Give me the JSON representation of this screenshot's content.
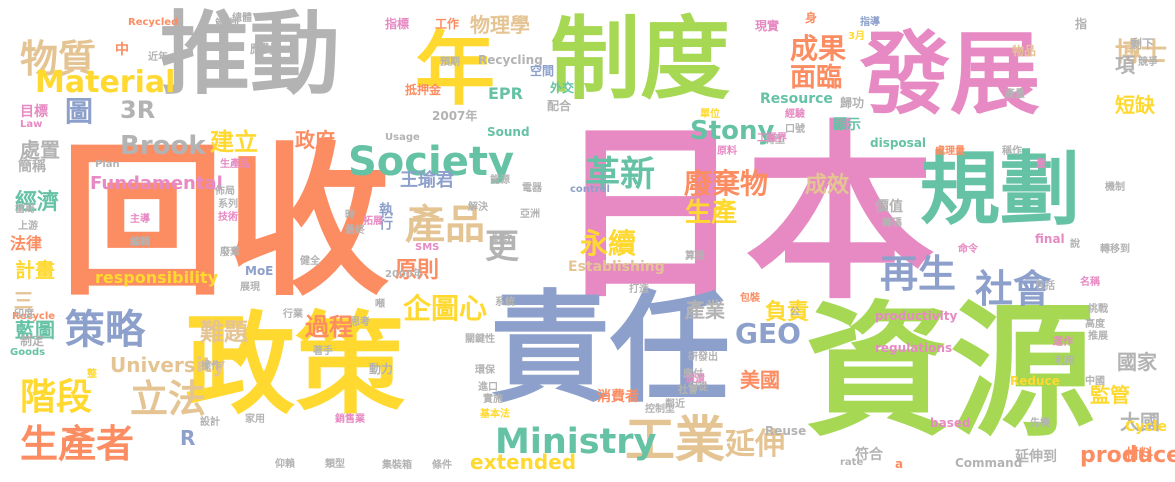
{
  "palette": {
    "green": "#a6d854",
    "pink": "#e78ac3",
    "orange": "#fc8d62",
    "blue": "#8da0cb",
    "teal": "#66c2a5",
    "yellow": "#ffd92f",
    "tan": "#e5c494",
    "gray": "#b3b3b3"
  },
  "words": [
    {
      "text": "日本",
      "color": "pink"
    },
    {
      "text": "回收",
      "color": "orange"
    },
    {
      "text": "資源",
      "color": "green"
    },
    {
      "text": "推動",
      "color": "gray"
    },
    {
      "text": "發展",
      "color": "pink"
    },
    {
      "text": "責任",
      "color": "blue"
    },
    {
      "text": "政策",
      "color": "yellow"
    },
    {
      "text": "制度",
      "color": "green"
    },
    {
      "text": "規劃",
      "color": "teal"
    },
    {
      "text": "年",
      "color": "yellow"
    },
    {
      "text": "Society",
      "color": "teal"
    },
    {
      "text": "產品",
      "color": "tan"
    },
    {
      "text": "革新",
      "color": "teal"
    },
    {
      "text": "工業",
      "color": "tan"
    },
    {
      "text": "延伸",
      "color": "tan"
    },
    {
      "text": "再生",
      "color": "blue"
    },
    {
      "text": "社會",
      "color": "blue"
    },
    {
      "text": "Ministry",
      "color": "teal"
    },
    {
      "text": "物質",
      "color": "tan"
    },
    {
      "text": "策略",
      "color": "blue"
    },
    {
      "text": "生產者",
      "color": "orange"
    },
    {
      "text": "立法",
      "color": "tan"
    },
    {
      "text": "階段",
      "color": "yellow"
    },
    {
      "text": "Material",
      "color": "yellow"
    },
    {
      "text": "圖",
      "color": "blue"
    },
    {
      "text": "3R",
      "color": "gray"
    },
    {
      "text": "成果",
      "color": "orange"
    },
    {
      "text": "面臨",
      "color": "orange"
    },
    {
      "text": "博士",
      "color": "tan"
    },
    {
      "text": "項",
      "color": "gray"
    },
    {
      "text": "短缺",
      "color": "yellow"
    },
    {
      "text": "物理學",
      "color": "tan"
    },
    {
      "text": "Stony",
      "color": "teal"
    },
    {
      "text": "Brook",
      "color": "gray"
    },
    {
      "text": "建立",
      "color": "yellow"
    },
    {
      "text": "政府",
      "color": "orange"
    },
    {
      "text": "廢棄物",
      "color": "orange"
    },
    {
      "text": "生產",
      "color": "yellow"
    },
    {
      "text": "成效",
      "color": "tan"
    },
    {
      "text": "永續",
      "color": "yellow"
    },
    {
      "text": "更",
      "color": "gray"
    },
    {
      "text": "原則",
      "color": "orange"
    },
    {
      "text": "GEO",
      "color": "blue"
    },
    {
      "text": "負責",
      "color": "yellow"
    },
    {
      "text": "產業",
      "color": "gray"
    },
    {
      "text": "企圖心",
      "color": "yellow"
    },
    {
      "text": "難題",
      "color": "tan"
    },
    {
      "text": "過程",
      "color": "orange"
    },
    {
      "text": "University",
      "color": "tan"
    },
    {
      "text": "美國",
      "color": "orange"
    },
    {
      "text": "R",
      "color": "blue"
    },
    {
      "text": "producer",
      "color": "orange"
    },
    {
      "text": "extended",
      "color": "yellow"
    },
    {
      "text": "Fundamental",
      "color": "pink"
    },
    {
      "text": "responsibility",
      "color": "yellow"
    },
    {
      "text": "Establishing",
      "color": "tan"
    },
    {
      "text": "王瑜君",
      "color": "blue"
    },
    {
      "text": "執行",
      "color": "blue"
    },
    {
      "text": "處置",
      "color": "gray"
    },
    {
      "text": "經濟",
      "color": "teal"
    },
    {
      "text": "計畫",
      "color": "yellow"
    },
    {
      "text": "藍圖",
      "color": "teal"
    },
    {
      "text": "國家",
      "color": "gray"
    },
    {
      "text": "監管",
      "color": "yellow"
    },
    {
      "text": "大國",
      "color": "gray"
    },
    {
      "text": "消費者",
      "color": "orange"
    },
    {
      "text": "EPR",
      "color": "teal"
    },
    {
      "text": "Recycling",
      "color": "gray"
    },
    {
      "text": "Sound",
      "color": "teal"
    },
    {
      "text": "Resource",
      "color": "teal"
    },
    {
      "text": "中",
      "color": "orange"
    },
    {
      "text": "價值",
      "color": "gray"
    },
    {
      "text": "顯示",
      "color": "teal"
    },
    {
      "text": "2007年",
      "color": "gray"
    },
    {
      "text": "MoE",
      "color": "blue"
    },
    {
      "text": "簡稱",
      "color": "gray"
    },
    {
      "text": "法律",
      "color": "orange"
    },
    {
      "text": "目標",
      "color": "pink"
    },
    {
      "text": "Law",
      "color": "pink"
    },
    {
      "text": "三",
      "color": "tan"
    },
    {
      "text": "制定",
      "color": "gray"
    },
    {
      "text": "Goods",
      "color": "teal"
    },
    {
      "text": "符合",
      "color": "gray"
    },
    {
      "text": "材料",
      "color": "orange"
    },
    {
      "text": "Cycle",
      "color": "yellow"
    },
    {
      "text": "延伸到",
      "color": "gray"
    },
    {
      "text": "productivity",
      "color": "pink"
    },
    {
      "text": "regulations",
      "color": "pink"
    },
    {
      "text": "Command",
      "color": "gray"
    },
    {
      "text": "disposal",
      "color": "teal"
    },
    {
      "text": "final",
      "color": "pink"
    },
    {
      "text": "Reuse",
      "color": "gray"
    },
    {
      "text": "Reduce",
      "color": "yellow"
    },
    {
      "text": "based",
      "color": "pink"
    },
    {
      "text": "SMS",
      "color": "pink"
    },
    {
      "text": "control",
      "color": "blue"
    },
    {
      "text": "Plan",
      "color": "gray"
    },
    {
      "text": "Usage",
      "color": "gray"
    },
    {
      "text": "Recycled",
      "color": "orange"
    },
    {
      "text": "Recycle",
      "color": "orange"
    },
    {
      "text": "2000年",
      "color": "gray"
    },
    {
      "text": "rate",
      "color": "gray"
    },
    {
      "text": "a",
      "color": "orange"
    },
    {
      "text": "指",
      "color": "gray"
    },
    {
      "text": "指導",
      "color": "blue"
    },
    {
      "text": "指標",
      "color": "pink"
    },
    {
      "text": "管制",
      "color": "gray"
    },
    {
      "text": "應對",
      "color": "gray"
    },
    {
      "text": "預期",
      "color": "gray"
    },
    {
      "text": "抵押金",
      "color": "orange"
    },
    {
      "text": "外交",
      "color": "teal"
    },
    {
      "text": "配合",
      "color": "gray"
    },
    {
      "text": "空間",
      "color": "blue"
    },
    {
      "text": "工作",
      "color": "orange"
    },
    {
      "text": "身",
      "color": "orange"
    },
    {
      "text": "3月",
      "color": "yellow"
    },
    {
      "text": "現實",
      "color": "pink"
    },
    {
      "text": "物品",
      "color": "tan"
    },
    {
      "text": "剩下",
      "color": "gray"
    },
    {
      "text": "競爭",
      "color": "gray"
    },
    {
      "text": "產量",
      "color": "gray"
    },
    {
      "text": "歸功",
      "color": "gray"
    },
    {
      "text": "經驗",
      "color": "pink"
    },
    {
      "text": "口號",
      "color": "gray"
    },
    {
      "text": "轉型",
      "color": "gray"
    },
    {
      "text": "原料",
      "color": "pink"
    },
    {
      "text": "單位",
      "color": "yellow"
    },
    {
      "text": "工業界",
      "color": "pink"
    },
    {
      "text": "處理量",
      "color": "orange"
    },
    {
      "text": "稱作",
      "color": "gray"
    },
    {
      "text": "量",
      "color": "pink"
    },
    {
      "text": "機制",
      "color": "gray"
    },
    {
      "text": "籌碼",
      "color": "gray"
    },
    {
      "text": "說",
      "color": "gray"
    },
    {
      "text": "轉移到",
      "color": "gray"
    },
    {
      "text": "命令",
      "color": "pink"
    },
    {
      "text": "算是",
      "color": "gray"
    },
    {
      "text": "包括",
      "color": "gray"
    },
    {
      "text": "高度",
      "color": "gray"
    },
    {
      "text": "推展",
      "color": "gray"
    },
    {
      "text": "挑戰",
      "color": "gray"
    },
    {
      "text": "名稱",
      "color": "pink"
    },
    {
      "text": "運作",
      "color": "pink"
    },
    {
      "text": "利用",
      "color": "gray"
    },
    {
      "text": "中國",
      "color": "gray"
    },
    {
      "text": "先機",
      "color": "gray"
    },
    {
      "text": "佈局",
      "color": "gray"
    },
    {
      "text": "系列",
      "color": "gray"
    },
    {
      "text": "技術",
      "color": "pink"
    },
    {
      "text": "主導",
      "color": "pink"
    },
    {
      "text": "編輯",
      "color": "gray"
    },
    {
      "text": "廢棄",
      "color": "gray"
    },
    {
      "text": "展現",
      "color": "gray"
    },
    {
      "text": "健全",
      "color": "gray"
    },
    {
      "text": "思考",
      "color": "gray"
    },
    {
      "text": "行業",
      "color": "gray"
    },
    {
      "text": "系統",
      "color": "gray"
    },
    {
      "text": "打造",
      "color": "gray"
    },
    {
      "text": "還還",
      "color": "pink"
    },
    {
      "text": "研發出",
      "color": "gray"
    },
    {
      "text": "社會",
      "color": "gray"
    },
    {
      "text": "應付",
      "color": "gray"
    },
    {
      "text": "何從",
      "color": "gray"
    },
    {
      "text": "鄰近",
      "color": "gray"
    },
    {
      "text": "進口",
      "color": "gray"
    },
    {
      "text": "實施",
      "color": "gray"
    },
    {
      "text": "環保",
      "color": "gray"
    },
    {
      "text": "關鍵性",
      "color": "gray"
    },
    {
      "text": "基本法",
      "color": "yellow"
    },
    {
      "text": "控制型",
      "color": "gray"
    },
    {
      "text": "銷售業",
      "color": "pink"
    },
    {
      "text": "家用",
      "color": "gray"
    },
    {
      "text": "設計",
      "color": "gray"
    },
    {
      "text": "仰賴",
      "color": "gray"
    },
    {
      "text": "類型",
      "color": "gray"
    },
    {
      "text": "集裝箱",
      "color": "gray"
    },
    {
      "text": "條件",
      "color": "gray"
    },
    {
      "text": "著手",
      "color": "gray"
    },
    {
      "text": "動力",
      "color": "gray"
    },
    {
      "text": "操作",
      "color": "gray"
    },
    {
      "text": "整",
      "color": "yellow"
    },
    {
      "text": "印度",
      "color": "gray"
    },
    {
      "text": "當局",
      "color": "gray"
    },
    {
      "text": "上游",
      "color": "gray"
    },
    {
      "text": "生產品",
      "color": "pink"
    },
    {
      "text": "能源",
      "color": "gray"
    },
    {
      "text": "電器",
      "color": "gray"
    },
    {
      "text": "解決",
      "color": "gray"
    },
    {
      "text": "財政",
      "color": "gray"
    },
    {
      "text": "亞洲",
      "color": "gray"
    },
    {
      "text": "拓展",
      "color": "pink"
    },
    {
      "text": "時",
      "color": "gray"
    },
    {
      "text": "最終",
      "color": "gray"
    },
    {
      "text": "噸",
      "color": "gray"
    },
    {
      "text": "總體",
      "color": "gray"
    },
    {
      "text": "近年",
      "color": "gray"
    },
    {
      "text": "公",
      "color": "gray"
    },
    {
      "text": "包裝",
      "color": "orange"
    },
    {
      "text": "使用率",
      "color": "gray"
    },
    {
      "text": "人口",
      "color": "orange"
    }
  ]
}
